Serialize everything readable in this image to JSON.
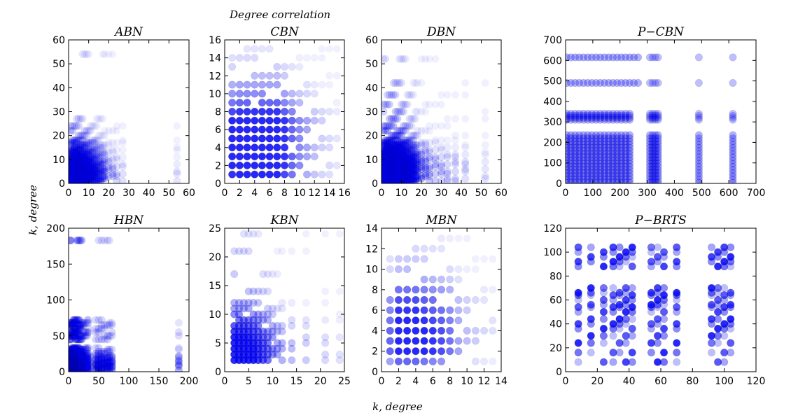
{
  "figure": {
    "suptitle": "Degree correlation",
    "xlabel": "k, degree",
    "ylabel": "k, degree",
    "marker_color": "#0000ff"
  },
  "chart_data": [
    {
      "type": "scatter",
      "title": "ABN",
      "xlim": [
        0,
        60
      ],
      "ylim": [
        0,
        60
      ],
      "xticks": [
        0,
        10,
        20,
        30,
        40,
        50,
        60
      ],
      "yticks": [
        0,
        10,
        20,
        30,
        40,
        50,
        60
      ],
      "degree_values": [
        1,
        2,
        3,
        4,
        5,
        6,
        7,
        8,
        9,
        10,
        11,
        12,
        13,
        14,
        15,
        16,
        17,
        18,
        20,
        22,
        24,
        27,
        54
      ],
      "weights": [
        1,
        1,
        1,
        1,
        1,
        0.9,
        0.85,
        0.8,
        0.7,
        0.65,
        0.55,
        0.5,
        0.45,
        0.4,
        0.35,
        0.3,
        0.3,
        0.25,
        0.2,
        0.18,
        0.15,
        0.12,
        0.1
      ]
    },
    {
      "type": "scatter",
      "title": "CBN",
      "xlim": [
        0,
        16
      ],
      "ylim": [
        0,
        16
      ],
      "xticks": [
        0,
        2,
        4,
        6,
        8,
        10,
        12,
        14,
        16
      ],
      "yticks": [
        0,
        2,
        4,
        6,
        8,
        10,
        12,
        14,
        16
      ],
      "degree_values": [
        1,
        2,
        3,
        4,
        5,
        6,
        7,
        8,
        9,
        10,
        11,
        12,
        13,
        14,
        15
      ],
      "weights": [
        0.9,
        1,
        1,
        1,
        1,
        1,
        1,
        0.8,
        0.6,
        0.45,
        0.35,
        0.25,
        0.18,
        0.14,
        0.1
      ]
    },
    {
      "type": "scatter",
      "title": "DBN",
      "xlim": [
        0,
        60
      ],
      "ylim": [
        0,
        60
      ],
      "xticks": [
        0,
        10,
        20,
        30,
        40,
        50,
        60
      ],
      "yticks": [
        0,
        10,
        20,
        30,
        40,
        50,
        60
      ],
      "degree_values": [
        1,
        2,
        3,
        4,
        5,
        6,
        7,
        8,
        9,
        10,
        11,
        12,
        13,
        14,
        15,
        16,
        17,
        18,
        20,
        22,
        24,
        27,
        30,
        33,
        37,
        42,
        52
      ],
      "weights": [
        1,
        1,
        1,
        1,
        1,
        1,
        1,
        0.95,
        0.9,
        0.85,
        0.8,
        0.7,
        0.6,
        0.55,
        0.5,
        0.45,
        0.4,
        0.35,
        0.3,
        0.25,
        0.22,
        0.2,
        0.18,
        0.16,
        0.15,
        0.13,
        0.1
      ]
    },
    {
      "type": "scatter",
      "title": "P−CBN",
      "xlim": [
        0,
        700
      ],
      "ylim": [
        0,
        700
      ],
      "xticks": [
        0,
        100,
        200,
        300,
        400,
        500,
        600,
        700
      ],
      "yticks": [
        0,
        100,
        200,
        300,
        400,
        500,
        600,
        700
      ],
      "dense_range": [
        0,
        250
      ],
      "cluster_values": [
        310,
        320,
        330,
        340,
        490,
        615
      ],
      "weights_dense": 0.9,
      "weights_cluster": 0.5
    },
    {
      "type": "scatter",
      "title": "HBN",
      "xlim": [
        0,
        200
      ],
      "ylim": [
        0,
        200
      ],
      "xticks": [
        0,
        50,
        100,
        150,
        200
      ],
      "yticks": [
        0,
        50,
        100,
        150,
        200
      ],
      "degree_values": [
        2,
        4,
        6,
        8,
        10,
        12,
        14,
        16,
        18,
        20,
        22,
        25,
        28,
        31,
        33,
        45,
        50,
        55,
        60,
        65,
        68,
        72,
        183
      ],
      "weights": [
        1,
        1,
        1,
        1,
        1,
        0.95,
        0.9,
        0.85,
        0.8,
        0.75,
        0.7,
        0.6,
        0.5,
        0.45,
        0.4,
        0.4,
        0.45,
        0.45,
        0.4,
        0.4,
        0.35,
        0.35,
        0.3
      ]
    },
    {
      "type": "scatter",
      "title": "KBN",
      "xlim": [
        0,
        25
      ],
      "ylim": [
        0,
        25
      ],
      "xticks": [
        0,
        5,
        10,
        15,
        20,
        25
      ],
      "yticks": [
        0,
        5,
        10,
        15,
        20,
        25
      ],
      "degree_values": [
        2,
        3,
        4,
        5,
        6,
        7,
        8,
        9,
        10,
        11,
        12,
        14,
        17,
        21,
        24
      ],
      "weights": [
        1,
        1,
        1,
        0.95,
        0.85,
        0.75,
        0.65,
        0.55,
        0.45,
        0.35,
        0.3,
        0.25,
        0.2,
        0.15,
        0.12
      ]
    },
    {
      "type": "scatter",
      "title": "MBN",
      "xlim": [
        0,
        14
      ],
      "ylim": [
        0,
        14
      ],
      "xticks": [
        0,
        2,
        4,
        6,
        8,
        10,
        12,
        14
      ],
      "yticks": [
        0,
        2,
        4,
        6,
        8,
        10,
        12,
        14
      ],
      "degree_values": [
        1,
        2,
        3,
        4,
        5,
        6,
        7,
        8,
        9,
        10,
        11,
        12,
        13
      ],
      "weights": [
        0.6,
        1,
        1,
        1,
        0.9,
        0.8,
        0.7,
        0.55,
        0.35,
        0.25,
        0.2,
        0.15,
        0.12
      ]
    },
    {
      "type": "scatter",
      "title": "P−BRTS",
      "xlim": [
        0,
        120
      ],
      "ylim": [
        0,
        120
      ],
      "xticks": [
        0,
        20,
        40,
        60,
        80,
        100,
        120
      ],
      "yticks": [
        0,
        20,
        40,
        60,
        80,
        100,
        120
      ],
      "degree_values": [
        8,
        16,
        24,
        30,
        34,
        38,
        42,
        54,
        58,
        62,
        70,
        92,
        96,
        100,
        104
      ],
      "row_values": [
        8,
        16,
        24,
        30,
        36,
        40,
        44,
        50,
        54,
        56,
        60,
        64,
        66,
        70,
        88,
        92,
        96,
        100,
        104
      ],
      "weights": [
        0.8
      ]
    }
  ]
}
